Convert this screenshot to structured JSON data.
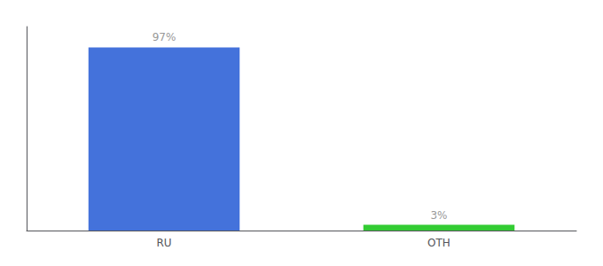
{
  "chart_data": {
    "type": "bar",
    "categories": [
      "RU",
      "OTH"
    ],
    "values": [
      97,
      3
    ],
    "value_labels": [
      "97%",
      "3%"
    ],
    "colors": [
      "#4472db",
      "#33cc33"
    ],
    "ylim": [
      0,
      108
    ],
    "tick_labels": "x",
    "data_labels": true,
    "grid": false
  }
}
